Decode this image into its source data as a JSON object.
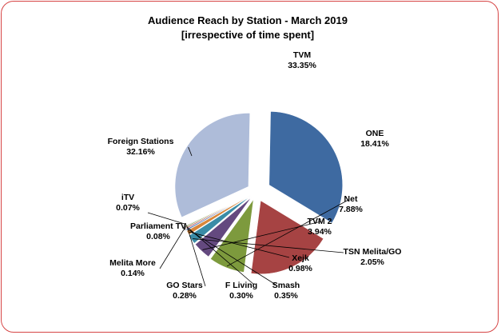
{
  "chart_data": {
    "type": "pie",
    "title": "Audience Reach by Station - March 2019",
    "subtitle": "[irrespective of time spent]",
    "slices": [
      {
        "name": "TVM",
        "value": 33.35,
        "label": "33.35%",
        "color": "#3e6aa1",
        "exploded": true
      },
      {
        "name": "ONE",
        "value": 18.41,
        "label": "18.41%",
        "color": "#a64343",
        "exploded": true
      },
      {
        "name": "Net",
        "value": 7.88,
        "label": "7.88%",
        "color": "#7d9a3d",
        "exploded": true
      },
      {
        "name": "TVM 2",
        "value": 3.94,
        "label": "3.94%",
        "color": "#64497f",
        "exploded": true
      },
      {
        "name": "TSN Melita/GO",
        "value": 2.05,
        "label": "2.05%",
        "color": "#3a8ca6",
        "exploded": true
      },
      {
        "name": "Xejk",
        "value": 0.98,
        "label": "0.98%",
        "color": "#d8873a",
        "exploded": true
      },
      {
        "name": "Smash",
        "value": 0.35,
        "label": "0.35%",
        "color": "#5b7fb6",
        "exploded": true
      },
      {
        "name": "F Living",
        "value": 0.3,
        "label": "0.30%",
        "color": "#c06060",
        "exploded": true
      },
      {
        "name": "GO Stars",
        "value": 0.28,
        "label": "0.28%",
        "color": "#99b060",
        "exploded": true
      },
      {
        "name": "Melita More",
        "value": 0.14,
        "label": "0.14%",
        "color": "#8a72a6",
        "exploded": true
      },
      {
        "name": "Parliament TV",
        "value": 0.08,
        "label": "0.08%",
        "color": "#5fabc4",
        "exploded": true
      },
      {
        "name": "iTV",
        "value": 0.07,
        "label": "0.07%",
        "color": "#e9a25c",
        "exploded": true
      },
      {
        "name": "Foreign Stations",
        "value": 32.16,
        "label": "32.16%",
        "color": "#aebcd9",
        "exploded": true
      }
    ],
    "legend": "none"
  }
}
